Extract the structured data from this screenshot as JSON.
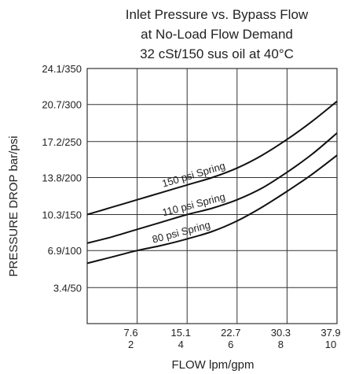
{
  "chart_data": {
    "type": "line",
    "title": [
      "Inlet Pressure vs. Bypass Flow",
      "at No-Load Flow Demand",
      "32 cSt/150 sus oil at 40°C"
    ],
    "xlabel": "FLOW lpm/gpm",
    "ylabel": "PRESSURE DROP bar/psi",
    "x_units": "gpm",
    "y_units": "bar",
    "xlim": [
      0,
      10
    ],
    "ylim": [
      0,
      24.1
    ],
    "grid": true,
    "x_ticks": [
      {
        "value": 2,
        "lpm": "7.6",
        "gpm": "2"
      },
      {
        "value": 4,
        "lpm": "15.1",
        "gpm": "4"
      },
      {
        "value": 6,
        "lpm": "22.7",
        "gpm": "6"
      },
      {
        "value": 8,
        "lpm": "30.3",
        "gpm": "8"
      },
      {
        "value": 10,
        "lpm": "37.9",
        "gpm": "10"
      }
    ],
    "y_ticks": [
      {
        "value": 3.4,
        "label": "3.4/50"
      },
      {
        "value": 6.9,
        "label": "6.9/100"
      },
      {
        "value": 10.3,
        "label": "10.3/150"
      },
      {
        "value": 13.8,
        "label": "13.8/200"
      },
      {
        "value": 17.2,
        "label": "17.2/250"
      },
      {
        "value": 20.7,
        "label": "20.7/300"
      },
      {
        "value": 24.1,
        "label": "24.1/350"
      }
    ],
    "series": [
      {
        "name": "150 psi Spring",
        "x": [
          0,
          1,
          2,
          3,
          4,
          5,
          6,
          7,
          8,
          9,
          10
        ],
        "y": [
          10.3,
          11.0,
          11.7,
          12.4,
          13.1,
          13.8,
          14.7,
          15.9,
          17.4,
          19.1,
          21.0
        ],
        "label_at": 4.3
      },
      {
        "name": "110 psi Spring",
        "x": [
          0,
          1,
          2,
          3,
          4,
          5,
          6,
          7,
          8,
          9,
          10
        ],
        "y": [
          7.6,
          8.2,
          8.9,
          9.6,
          10.3,
          10.9,
          11.7,
          12.8,
          14.3,
          16.0,
          18.0
        ],
        "label_at": 4.3
      },
      {
        "name": "80 psi Spring",
        "x": [
          0,
          1,
          2,
          3,
          4,
          5,
          6,
          7,
          8,
          9,
          10
        ],
        "y": [
          5.7,
          6.3,
          6.9,
          7.4,
          8.0,
          8.7,
          9.7,
          11.0,
          12.5,
          14.1,
          15.9
        ],
        "label_at": 3.8
      }
    ]
  }
}
